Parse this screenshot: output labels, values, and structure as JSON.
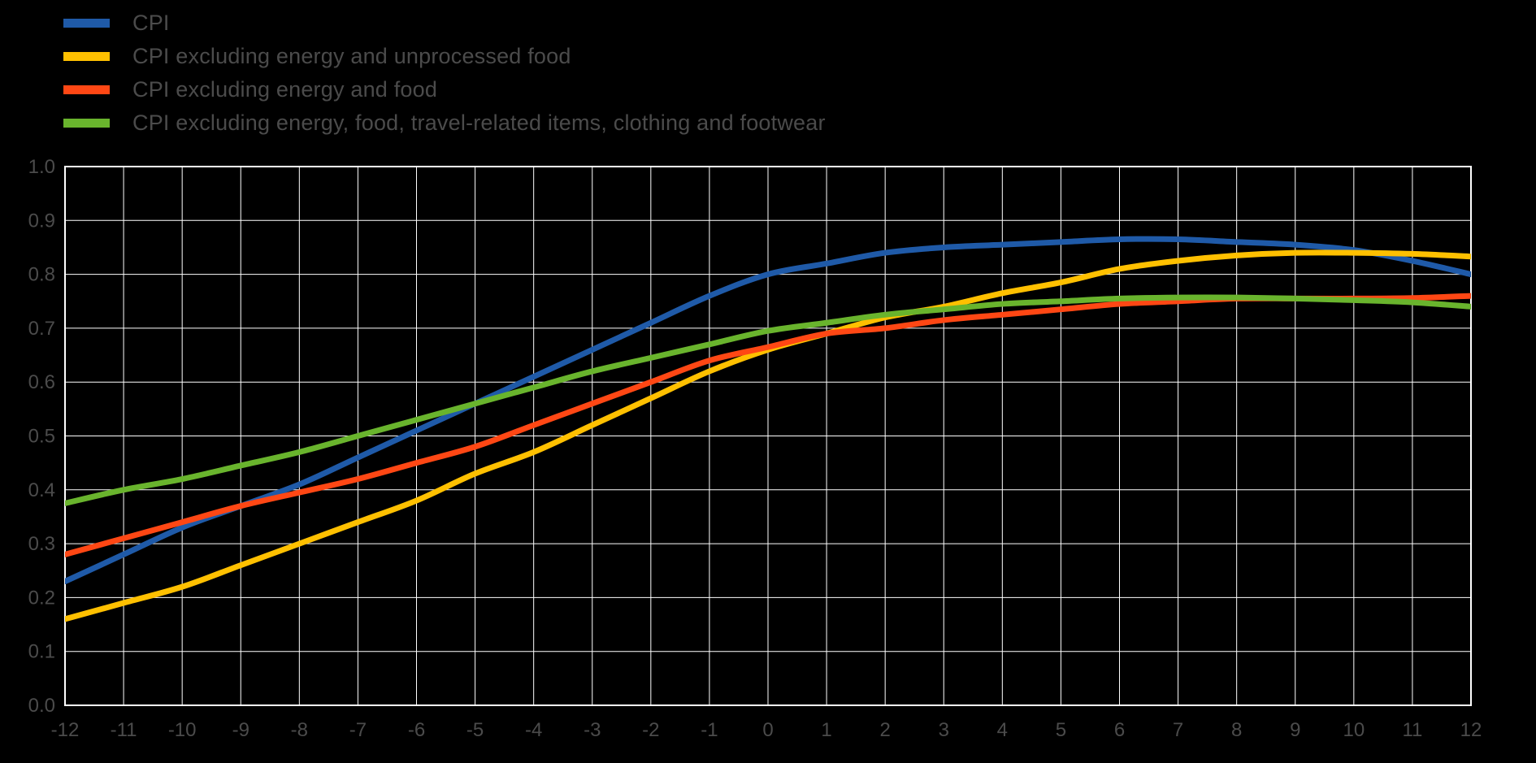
{
  "chart_data": {
    "type": "line",
    "title": "",
    "xlabel": "",
    "ylabel": "",
    "background": "#000000",
    "grid": true,
    "grid_color": "#ffffff",
    "tick_label_color": "#4b4b4b",
    "legend_position": "top-left",
    "ylim": [
      0.0,
      1.0
    ],
    "ytick_step": 0.1,
    "x": [
      -12,
      -11,
      -10,
      -9,
      -8,
      -7,
      -6,
      -5,
      -4,
      -3,
      -2,
      -1,
      0,
      1,
      2,
      3,
      4,
      5,
      6,
      7,
      8,
      9,
      10,
      11,
      12
    ],
    "series": [
      {
        "name": "CPI",
        "color": "#1F5AA8",
        "values": [
          0.23,
          0.28,
          0.33,
          0.37,
          0.41,
          0.46,
          0.51,
          0.56,
          0.61,
          0.66,
          0.71,
          0.76,
          0.8,
          0.82,
          0.84,
          0.85,
          0.855,
          0.86,
          0.865,
          0.865,
          0.86,
          0.855,
          0.845,
          0.825,
          0.8
        ]
      },
      {
        "name": "CPI excluding energy and unprocessed food",
        "color": "#FFC000",
        "values": [
          0.16,
          0.19,
          0.22,
          0.26,
          0.3,
          0.34,
          0.38,
          0.43,
          0.47,
          0.52,
          0.57,
          0.62,
          0.66,
          0.69,
          0.72,
          0.74,
          0.765,
          0.785,
          0.81,
          0.825,
          0.835,
          0.84,
          0.84,
          0.838,
          0.833
        ]
      },
      {
        "name": "CPI excluding energy and food",
        "color": "#FF4714",
        "values": [
          0.28,
          0.31,
          0.34,
          0.37,
          0.395,
          0.42,
          0.45,
          0.48,
          0.52,
          0.56,
          0.6,
          0.64,
          0.665,
          0.69,
          0.7,
          0.715,
          0.725,
          0.735,
          0.745,
          0.75,
          0.755,
          0.755,
          0.755,
          0.756,
          0.76
        ]
      },
      {
        "name": "CPI excluding energy, food, travel-related items, clothing and footwear",
        "color": "#69B42D",
        "values": [
          0.375,
          0.4,
          0.42,
          0.445,
          0.47,
          0.5,
          0.53,
          0.56,
          0.59,
          0.62,
          0.645,
          0.67,
          0.695,
          0.71,
          0.725,
          0.735,
          0.745,
          0.75,
          0.755,
          0.757,
          0.757,
          0.755,
          0.752,
          0.748,
          0.74
        ]
      }
    ]
  }
}
